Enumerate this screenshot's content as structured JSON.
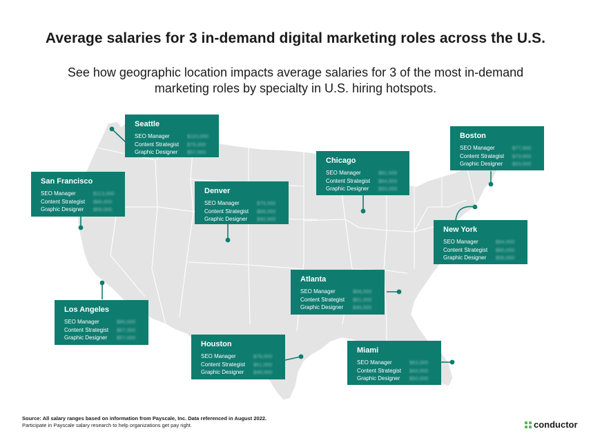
{
  "header": {
    "title": "Average salaries for 3 in-demand digital marketing roles across the U.S.",
    "subtitle": "See how geographic location impacts average salaries for 3 of the most in-demand marketing roles by specialty in U.S. hiring hotspots."
  },
  "roles": [
    "SEO Manager",
    "Content Strategist",
    "Graphic Designer"
  ],
  "cities": [
    {
      "name": "Seattle",
      "values": [
        "$110,000",
        "$76,000",
        "$57,000"
      ]
    },
    {
      "name": "Boston",
      "values": [
        "$77,000",
        "$73,000",
        "$53,000"
      ]
    },
    {
      "name": "Chicago",
      "values": [
        "$81,000",
        "$64,000",
        "$50,000"
      ]
    },
    {
      "name": "San Francisco",
      "values": [
        "$113,000",
        "$86,000",
        "$69,000"
      ]
    },
    {
      "name": "Denver",
      "values": [
        "$79,000",
        "$68,000",
        "$50,000"
      ]
    },
    {
      "name": "New York",
      "values": [
        "$94,000",
        "$86,000",
        "$56,000"
      ]
    },
    {
      "name": "Atlanta",
      "values": [
        "$68,000",
        "$61,000",
        "$46,000"
      ]
    },
    {
      "name": "Los Angeles",
      "values": [
        "$80,000",
        "$67,000",
        "$57,000"
      ]
    },
    {
      "name": "Houston",
      "values": [
        "$78,000",
        "$61,000",
        "$48,000"
      ]
    },
    {
      "name": "Miami",
      "values": [
        "$63,000",
        "$43,000",
        "$50,000"
      ]
    }
  ],
  "colors": {
    "card": "#0f7c70",
    "map_fill": "#e4e4e4",
    "map_border": "#ffffff",
    "marker": "#0f7c70",
    "logo_mark": "#5cb85c"
  },
  "footer": {
    "source": "Source: All salary ranges based on information from Payscale, Inc. Data referenced in August 2022.",
    "note": "Participate in Payscale salary research to help organizations get pay right."
  },
  "brand": {
    "name": "conductor",
    "icon": "conductor-logo-icon"
  }
}
